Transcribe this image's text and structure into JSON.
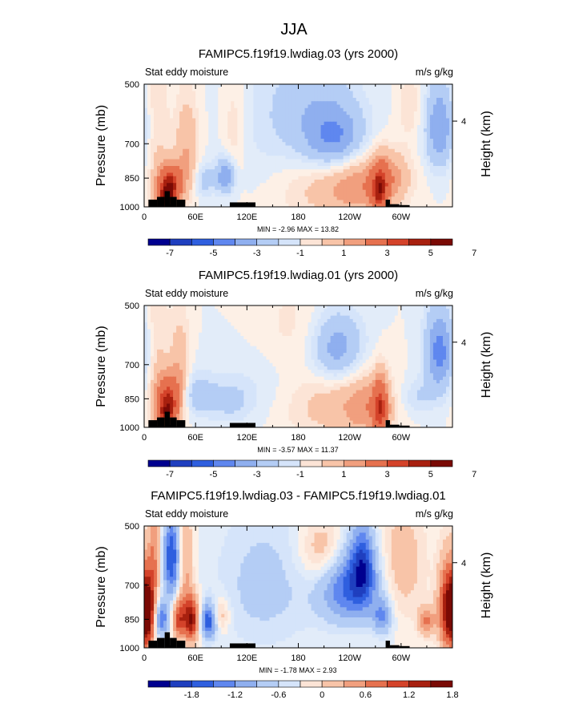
{
  "title": "JJA",
  "colors": {
    "scale": [
      "#00008f",
      "#1f3fbf",
      "#2f5fdf",
      "#5f87ef",
      "#8fafef",
      "#b4cdf5",
      "#d5e4fa",
      "#fce4d6",
      "#f8c4a8",
      "#f19f7e",
      "#e6714f",
      "#d4432a",
      "#a8200f",
      "#7a0a05"
    ],
    "land": "#000000"
  },
  "chart_data": [
    {
      "type": "heatmap",
      "title": "FAMIPC5.f19f19.lwdiag.03 (yrs 2000)",
      "left_label": "Stat eddy moisture",
      "right_label": "m/s g/kg",
      "ylabel": "Pressure (mb)",
      "right_axis_label": "Height (km)",
      "right_tick": "4",
      "x_ticks": [
        "0",
        "60E",
        "120E",
        "180",
        "120W",
        "60W"
      ],
      "y_ticks": [
        "500",
        "700",
        "850",
        "1000"
      ],
      "min_max": "MIN =  -2.96  MAX =  13.82",
      "colorbar_ticks": [
        "-7",
        "-5",
        "-3",
        "-1",
        "1",
        "3",
        "5",
        "7"
      ],
      "levels": [
        -8,
        -7,
        -6,
        -5,
        -4,
        -3,
        -2,
        -1,
        0,
        1,
        2,
        3,
        4,
        5,
        6,
        7,
        8
      ],
      "blobs": [
        {
          "lon": 30,
          "p": 880,
          "amp": 6,
          "wl": 10,
          "wp": 70
        },
        {
          "lon": 25,
          "p": 960,
          "amp": 4,
          "wl": 8,
          "wp": 50
        },
        {
          "lon": 50,
          "p": 730,
          "amp": 2.0,
          "wl": 10,
          "wp": 150
        },
        {
          "lon": 95,
          "p": 840,
          "amp": -3,
          "wl": 8,
          "wp": 60
        },
        {
          "lon": 70,
          "p": 860,
          "amp": -1.5,
          "wl": 8,
          "wp": 60
        },
        {
          "lon": 200,
          "p": 880,
          "amp": 1.2,
          "wl": 40,
          "wp": 140
        },
        {
          "lon": 255,
          "p": 880,
          "amp": 2.5,
          "wl": 30,
          "wp": 110
        },
        {
          "lon": 275,
          "p": 920,
          "amp": 4.5,
          "wl": 7,
          "wp": 100
        },
        {
          "lon": 290,
          "p": 840,
          "amp": 1.5,
          "wl": 15,
          "wp": 80
        },
        {
          "lon": 225,
          "p": 690,
          "amp": -2.8,
          "wl": 25,
          "wp": 90
        },
        {
          "lon": 200,
          "p": 600,
          "amp": -1.4,
          "wl": 35,
          "wp": 140
        },
        {
          "lon": 345,
          "p": 640,
          "amp": -3,
          "wl": 12,
          "wp": 110
        },
        {
          "lon": 150,
          "p": 640,
          "amp": -0.6,
          "wl": 40,
          "wp": 220
        },
        {
          "lon": 105,
          "p": 650,
          "amp": 1.0,
          "wl": 10,
          "wp": 150
        },
        {
          "lon": 15,
          "p": 650,
          "amp": 1.0,
          "wl": 10,
          "wp": 250
        },
        {
          "lon": 310,
          "p": 560,
          "amp": 0.9,
          "wl": 10,
          "wp": 80
        }
      ],
      "land": [
        {
          "lon": [
            -10,
            5
          ],
          "p": 1000
        },
        {
          "lon": [
            5,
            15
          ],
          "p": 960
        },
        {
          "lon": [
            15,
            24
          ],
          "p": 945
        },
        {
          "lon": [
            24,
            30
          ],
          "p": 915
        },
        {
          "lon": [
            30,
            38
          ],
          "p": 945
        },
        {
          "lon": [
            38,
            48
          ],
          "p": 960
        },
        {
          "lon": [
            100,
            130
          ],
          "p": 975
        },
        {
          "lon": [
            282,
            287
          ],
          "p": 960
        },
        {
          "lon": [
            287,
            298
          ],
          "p": 985
        },
        {
          "lon": [
            298,
            310
          ],
          "p": 990
        }
      ]
    },
    {
      "type": "heatmap",
      "title": "FAMIPC5.f19f19.lwdiag.01 (yrs 2000)",
      "left_label": "Stat eddy moisture",
      "right_label": "m/s g/kg",
      "ylabel": "Pressure (mb)",
      "right_axis_label": "Height (km)",
      "right_tick": "4",
      "x_ticks": [
        "0",
        "60E",
        "120E",
        "180",
        "120W",
        "60W"
      ],
      "y_ticks": [
        "500",
        "700",
        "850",
        "1000"
      ],
      "min_max": "MIN =  -3.57  MAX =  11.37",
      "colorbar_ticks": [
        "-7",
        "-5",
        "-3",
        "-1",
        "1",
        "3",
        "5",
        "7"
      ],
      "levels": [
        -8,
        -7,
        -6,
        -5,
        -4,
        -3,
        -2,
        -1,
        0,
        1,
        2,
        3,
        4,
        5,
        6,
        7,
        8
      ],
      "blobs": [
        {
          "lon": 28,
          "p": 850,
          "amp": 5.5,
          "wl": 10,
          "wp": 80
        },
        {
          "lon": 25,
          "p": 940,
          "amp": 3.5,
          "wl": 8,
          "wp": 50
        },
        {
          "lon": 42,
          "p": 720,
          "amp": 1.8,
          "wl": 8,
          "wp": 150
        },
        {
          "lon": 60,
          "p": 830,
          "amp": -1.6,
          "wl": 15,
          "wp": 70
        },
        {
          "lon": 100,
          "p": 860,
          "amp": -1.2,
          "wl": 20,
          "wp": 80
        },
        {
          "lon": 225,
          "p": 640,
          "amp": -2.8,
          "wl": 22,
          "wp": 90
        },
        {
          "lon": 215,
          "p": 880,
          "amp": 1.4,
          "wl": 40,
          "wp": 130
        },
        {
          "lon": 262,
          "p": 890,
          "amp": 2.2,
          "wl": 20,
          "wp": 110
        },
        {
          "lon": 276,
          "p": 900,
          "amp": 4.2,
          "wl": 6,
          "wp": 110
        },
        {
          "lon": 345,
          "p": 650,
          "amp": -3.5,
          "wl": 12,
          "wp": 110
        },
        {
          "lon": 170,
          "p": 580,
          "amp": 0.9,
          "wl": 35,
          "wp": 120
        },
        {
          "lon": 150,
          "p": 720,
          "amp": -0.6,
          "wl": 35,
          "wp": 150
        },
        {
          "lon": 15,
          "p": 650,
          "amp": 1.0,
          "wl": 10,
          "wp": 250
        },
        {
          "lon": 320,
          "p": 840,
          "amp": -1.0,
          "wl": 15,
          "wp": 60
        }
      ],
      "land": [
        {
          "lon": [
            -10,
            5
          ],
          "p": 1000
        },
        {
          "lon": [
            5,
            15
          ],
          "p": 960
        },
        {
          "lon": [
            15,
            24
          ],
          "p": 945
        },
        {
          "lon": [
            24,
            30
          ],
          "p": 915
        },
        {
          "lon": [
            30,
            38
          ],
          "p": 945
        },
        {
          "lon": [
            38,
            48
          ],
          "p": 960
        },
        {
          "lon": [
            100,
            130
          ],
          "p": 975
        },
        {
          "lon": [
            282,
            287
          ],
          "p": 960
        },
        {
          "lon": [
            287,
            298
          ],
          "p": 985
        },
        {
          "lon": [
            298,
            310
          ],
          "p": 990
        }
      ]
    },
    {
      "type": "heatmap",
      "title": "FAMIPC5.f19f19.lwdiag.03 - FAMIPC5.f19f19.lwdiag.01",
      "left_label": "Stat eddy moisture",
      "right_label": "m/s g/kg",
      "ylabel": "Pressure (mb)",
      "right_axis_label": "Height (km)",
      "right_tick": "4",
      "x_ticks": [
        "0",
        "60E",
        "120E",
        "180",
        "120W",
        "60W"
      ],
      "y_ticks": [
        "500",
        "700",
        "850",
        "1000"
      ],
      "min_max": "MIN =  -1.78  MAX =  2.93",
      "colorbar_ticks": [
        "-1.8",
        "-1.2",
        "-0.6",
        "0",
        "0.6",
        "1.2",
        "1.8"
      ],
      "levels": [
        -2.1,
        -1.8,
        -1.5,
        -1.2,
        -0.9,
        -0.6,
        -0.3,
        0,
        0.3,
        0.6,
        0.9,
        1.2,
        1.5,
        1.8,
        2.1
      ],
      "blobs": [
        {
          "lon": 5,
          "p": 820,
          "amp": 1.6,
          "wl": 6,
          "wp": 120
        },
        {
          "lon": 12,
          "p": 580,
          "amp": 0.8,
          "wl": 5,
          "wp": 120
        },
        {
          "lon": 20,
          "p": 850,
          "amp": -1.2,
          "wl": 6,
          "wp": 60
        },
        {
          "lon": 32,
          "p": 600,
          "amp": -1.5,
          "wl": 7,
          "wp": 100
        },
        {
          "lon": 40,
          "p": 850,
          "amp": 1.2,
          "wl": 5,
          "wp": 70
        },
        {
          "lon": 55,
          "p": 850,
          "amp": 1.8,
          "wl": 7,
          "wp": 80
        },
        {
          "lon": 48,
          "p": 600,
          "amp": 0.7,
          "wl": 6,
          "wp": 150
        },
        {
          "lon": 75,
          "p": 860,
          "amp": -1.5,
          "wl": 7,
          "wp": 60
        },
        {
          "lon": 88,
          "p": 830,
          "amp": 0.6,
          "wl": 8,
          "wp": 60
        },
        {
          "lon": 240,
          "p": 700,
          "amp": -1.3,
          "wl": 25,
          "wp": 110
        },
        {
          "lon": 255,
          "p": 620,
          "amp": -1.1,
          "wl": 10,
          "wp": 100
        },
        {
          "lon": 210,
          "p": 580,
          "amp": 0.7,
          "wl": 20,
          "wp": 80
        },
        {
          "lon": 278,
          "p": 840,
          "amp": -0.9,
          "wl": 8,
          "wp": 60
        },
        {
          "lon": 300,
          "p": 620,
          "amp": 0.5,
          "wl": 20,
          "wp": 150
        },
        {
          "lon": 355,
          "p": 800,
          "amp": 1.8,
          "wl": 8,
          "wp": 140
        },
        {
          "lon": 330,
          "p": 860,
          "amp": 0.9,
          "wl": 7,
          "wp": 50
        },
        {
          "lon": 140,
          "p": 700,
          "amp": -0.4,
          "wl": 40,
          "wp": 200
        }
      ],
      "land": [
        {
          "lon": [
            -10,
            5
          ],
          "p": 1000
        },
        {
          "lon": [
            5,
            15
          ],
          "p": 960
        },
        {
          "lon": [
            15,
            24
          ],
          "p": 945
        },
        {
          "lon": [
            24,
            30
          ],
          "p": 915
        },
        {
          "lon": [
            30,
            38
          ],
          "p": 945
        },
        {
          "lon": [
            38,
            48
          ],
          "p": 960
        },
        {
          "lon": [
            100,
            130
          ],
          "p": 975
        },
        {
          "lon": [
            282,
            287
          ],
          "p": 960
        },
        {
          "lon": [
            287,
            298
          ],
          "p": 985
        },
        {
          "lon": [
            298,
            310
          ],
          "p": 990
        }
      ]
    }
  ]
}
